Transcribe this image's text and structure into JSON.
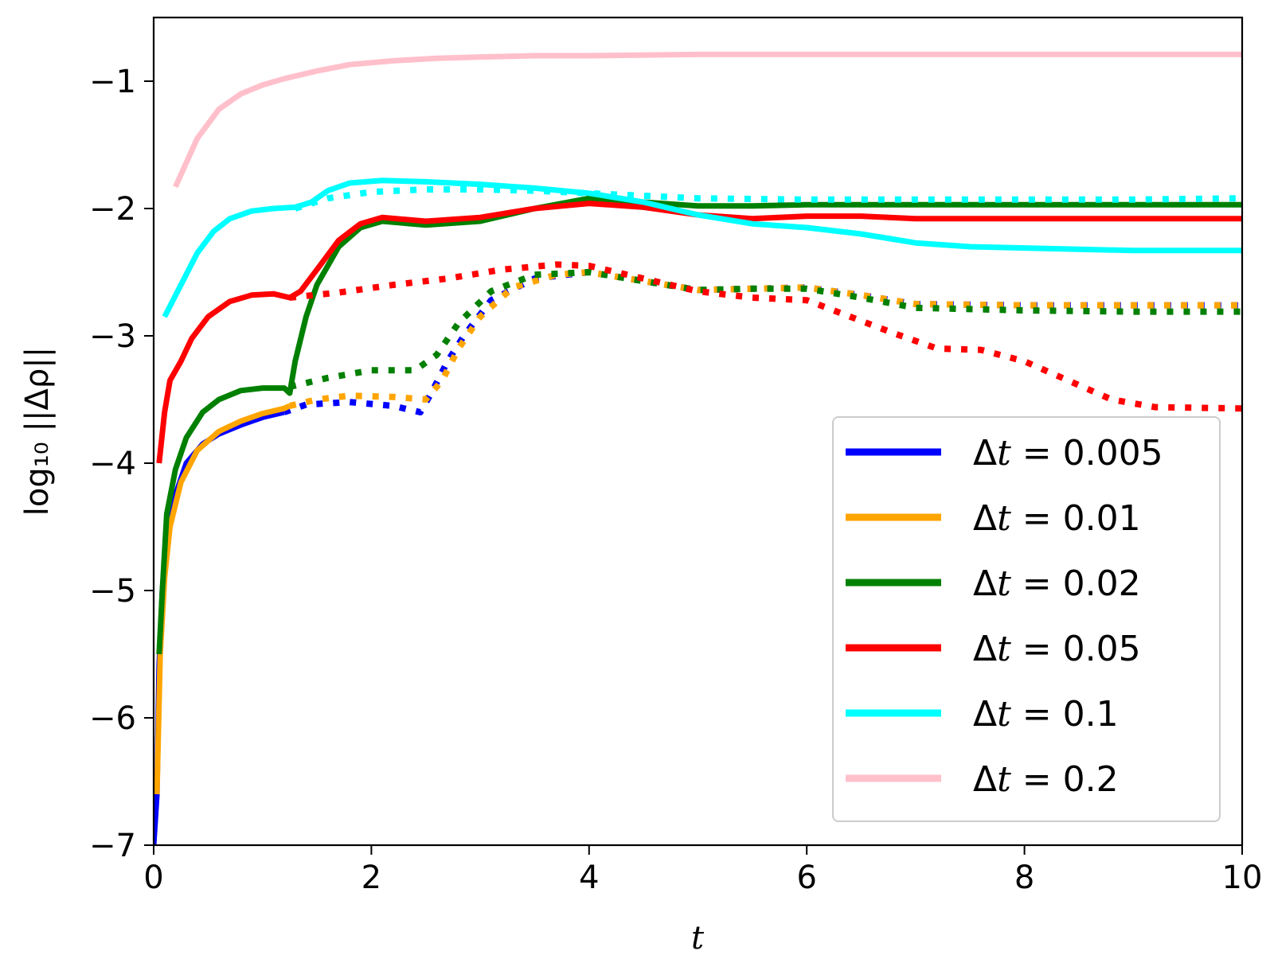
{
  "chart_data": {
    "type": "line",
    "xlabel": "t",
    "ylabel": "log₁₀ ||Δρ||",
    "xlim": [
      0,
      10
    ],
    "ylim": [
      -7,
      -0.5
    ],
    "xticks": [
      0,
      2,
      4,
      6,
      8,
      10
    ],
    "xtick_labels": [
      "0",
      "2",
      "4",
      "6",
      "8",
      "10"
    ],
    "yticks": [
      -7,
      -6,
      -5,
      -4,
      -3,
      -2,
      -1
    ],
    "ytick_labels": [
      "−7",
      "−6",
      "−5",
      "−4",
      "−3",
      "−2",
      "−1"
    ],
    "grid": false,
    "legend_position": "bottom-right",
    "series": [
      {
        "name": "Δt = 0.005",
        "legend_prefix": "Δt = ",
        "legend_value": "0.005",
        "color": "#0000ff",
        "solid": [
          [
            0.0,
            -7.0
          ],
          [
            0.03,
            -6.6
          ],
          [
            0.05,
            -5.6
          ],
          [
            0.08,
            -5.0
          ],
          [
            0.12,
            -4.6
          ],
          [
            0.2,
            -4.25
          ],
          [
            0.3,
            -4.0
          ],
          [
            0.45,
            -3.85
          ],
          [
            0.6,
            -3.77
          ],
          [
            0.8,
            -3.7
          ],
          [
            1.0,
            -3.64
          ],
          [
            1.2,
            -3.6
          ]
        ],
        "dotted": [
          [
            1.2,
            -3.6
          ],
          [
            1.4,
            -3.54
          ],
          [
            1.8,
            -3.52
          ],
          [
            2.2,
            -3.55
          ],
          [
            2.45,
            -3.6
          ],
          [
            2.55,
            -3.45
          ],
          [
            2.7,
            -3.2
          ],
          [
            2.85,
            -3.0
          ],
          [
            3.1,
            -2.72
          ],
          [
            3.5,
            -2.55
          ],
          [
            4.0,
            -2.5
          ],
          [
            4.5,
            -2.57
          ],
          [
            5.0,
            -2.64
          ],
          [
            5.5,
            -2.63
          ],
          [
            6.0,
            -2.62
          ],
          [
            6.5,
            -2.68
          ],
          [
            7.0,
            -2.75
          ],
          [
            8.0,
            -2.76
          ],
          [
            9.0,
            -2.76
          ],
          [
            10.0,
            -2.76
          ]
        ]
      },
      {
        "name": "Δt = 0.01",
        "legend_prefix": "Δt = ",
        "legend_value": "0.01",
        "color": "#ffa500",
        "solid": [
          [
            0.03,
            -6.6
          ],
          [
            0.06,
            -5.5
          ],
          [
            0.1,
            -4.9
          ],
          [
            0.15,
            -4.5
          ],
          [
            0.25,
            -4.15
          ],
          [
            0.4,
            -3.9
          ],
          [
            0.6,
            -3.75
          ],
          [
            0.8,
            -3.67
          ],
          [
            1.0,
            -3.61
          ],
          [
            1.2,
            -3.57
          ],
          [
            1.25,
            -3.55
          ]
        ],
        "dotted": [
          [
            1.25,
            -3.55
          ],
          [
            1.5,
            -3.5
          ],
          [
            1.8,
            -3.47
          ],
          [
            2.2,
            -3.48
          ],
          [
            2.5,
            -3.5
          ],
          [
            2.65,
            -3.35
          ],
          [
            2.8,
            -3.1
          ],
          [
            3.0,
            -2.85
          ],
          [
            3.3,
            -2.62
          ],
          [
            3.7,
            -2.52
          ],
          [
            4.0,
            -2.5
          ],
          [
            4.5,
            -2.57
          ],
          [
            5.0,
            -2.64
          ],
          [
            5.5,
            -2.63
          ],
          [
            6.0,
            -2.62
          ],
          [
            6.5,
            -2.68
          ],
          [
            7.0,
            -2.75
          ],
          [
            8.0,
            -2.76
          ],
          [
            9.0,
            -2.76
          ],
          [
            10.0,
            -2.76
          ]
        ]
      },
      {
        "name": "Δt = 0.02",
        "legend_prefix": "Δt = ",
        "legend_value": "0.02",
        "color": "#008000",
        "solid": [
          [
            0.05,
            -5.5
          ],
          [
            0.08,
            -5.0
          ],
          [
            0.12,
            -4.4
          ],
          [
            0.2,
            -4.05
          ],
          [
            0.3,
            -3.8
          ],
          [
            0.45,
            -3.6
          ],
          [
            0.6,
            -3.5
          ],
          [
            0.8,
            -3.43
          ],
          [
            1.0,
            -3.41
          ],
          [
            1.2,
            -3.41
          ],
          [
            1.25,
            -3.45
          ],
          [
            1.3,
            -3.2
          ],
          [
            1.4,
            -2.85
          ],
          [
            1.5,
            -2.6
          ],
          [
            1.7,
            -2.3
          ],
          [
            1.9,
            -2.15
          ],
          [
            2.1,
            -2.1
          ],
          [
            2.5,
            -2.13
          ],
          [
            3.0,
            -2.1
          ],
          [
            3.5,
            -2.0
          ],
          [
            4.0,
            -1.92
          ],
          [
            4.5,
            -1.95
          ],
          [
            5.0,
            -1.98
          ],
          [
            5.5,
            -1.98
          ],
          [
            6.0,
            -1.97
          ],
          [
            7.0,
            -1.97
          ],
          [
            8.0,
            -1.97
          ],
          [
            9.0,
            -1.97
          ],
          [
            10.0,
            -1.97
          ]
        ],
        "dotted": [
          [
            1.25,
            -3.4
          ],
          [
            1.6,
            -3.33
          ],
          [
            2.0,
            -3.27
          ],
          [
            2.4,
            -3.27
          ],
          [
            2.6,
            -3.15
          ],
          [
            2.8,
            -2.9
          ],
          [
            3.1,
            -2.65
          ],
          [
            3.5,
            -2.52
          ],
          [
            4.0,
            -2.5
          ],
          [
            4.5,
            -2.57
          ],
          [
            5.0,
            -2.64
          ],
          [
            5.5,
            -2.63
          ],
          [
            6.0,
            -2.63
          ],
          [
            6.5,
            -2.7
          ],
          [
            7.0,
            -2.78
          ],
          [
            8.0,
            -2.8
          ],
          [
            9.0,
            -2.81
          ],
          [
            10.0,
            -2.81
          ]
        ]
      },
      {
        "name": "Δt = 0.05",
        "legend_prefix": "Δt = ",
        "legend_value": "0.05",
        "color": "#ff0000",
        "solid": [
          [
            0.05,
            -4.0
          ],
          [
            0.1,
            -3.6
          ],
          [
            0.15,
            -3.35
          ],
          [
            0.25,
            -3.2
          ],
          [
            0.35,
            -3.02
          ],
          [
            0.5,
            -2.85
          ],
          [
            0.7,
            -2.73
          ],
          [
            0.9,
            -2.68
          ],
          [
            1.1,
            -2.67
          ],
          [
            1.25,
            -2.7
          ],
          [
            1.35,
            -2.65
          ],
          [
            1.5,
            -2.48
          ],
          [
            1.7,
            -2.25
          ],
          [
            1.9,
            -2.12
          ],
          [
            2.1,
            -2.07
          ],
          [
            2.5,
            -2.1
          ],
          [
            3.0,
            -2.07
          ],
          [
            3.5,
            -2.0
          ],
          [
            4.0,
            -1.96
          ],
          [
            4.5,
            -1.99
          ],
          [
            5.0,
            -2.05
          ],
          [
            5.5,
            -2.08
          ],
          [
            6.0,
            -2.06
          ],
          [
            6.5,
            -2.06
          ],
          [
            7.0,
            -2.08
          ],
          [
            8.0,
            -2.08
          ],
          [
            9.0,
            -2.08
          ],
          [
            10.0,
            -2.08
          ]
        ],
        "dotted": [
          [
            1.25,
            -2.7
          ],
          [
            1.7,
            -2.66
          ],
          [
            2.2,
            -2.6
          ],
          [
            2.7,
            -2.55
          ],
          [
            3.2,
            -2.48
          ],
          [
            3.7,
            -2.44
          ],
          [
            4.0,
            -2.45
          ],
          [
            4.5,
            -2.55
          ],
          [
            5.0,
            -2.65
          ],
          [
            5.5,
            -2.7
          ],
          [
            6.0,
            -2.72
          ],
          [
            6.4,
            -2.85
          ],
          [
            6.8,
            -2.98
          ],
          [
            7.2,
            -3.1
          ],
          [
            7.6,
            -3.11
          ],
          [
            8.0,
            -3.2
          ],
          [
            8.4,
            -3.35
          ],
          [
            8.8,
            -3.5
          ],
          [
            9.2,
            -3.56
          ],
          [
            10.0,
            -3.57
          ]
        ]
      },
      {
        "name": "Δt = 0.1",
        "legend_prefix": "Δt = ",
        "legend_value": "0.1",
        "color": "#00ffff",
        "solid": [
          [
            0.1,
            -2.85
          ],
          [
            0.25,
            -2.6
          ],
          [
            0.4,
            -2.35
          ],
          [
            0.55,
            -2.18
          ],
          [
            0.7,
            -2.08
          ],
          [
            0.9,
            -2.02
          ],
          [
            1.1,
            -2.0
          ],
          [
            1.3,
            -1.99
          ],
          [
            1.45,
            -1.95
          ],
          [
            1.6,
            -1.86
          ],
          [
            1.8,
            -1.8
          ],
          [
            2.1,
            -1.78
          ],
          [
            2.5,
            -1.79
          ],
          [
            3.0,
            -1.81
          ],
          [
            3.5,
            -1.84
          ],
          [
            4.0,
            -1.88
          ],
          [
            4.5,
            -1.95
          ],
          [
            5.0,
            -2.05
          ],
          [
            5.5,
            -2.12
          ],
          [
            6.0,
            -2.15
          ],
          [
            6.5,
            -2.2
          ],
          [
            7.0,
            -2.27
          ],
          [
            7.5,
            -2.3
          ],
          [
            8.0,
            -2.31
          ],
          [
            9.0,
            -2.33
          ],
          [
            10.0,
            -2.33
          ]
        ],
        "dotted": [
          [
            1.3,
            -2.0
          ],
          [
            1.6,
            -1.92
          ],
          [
            2.0,
            -1.87
          ],
          [
            2.5,
            -1.85
          ],
          [
            3.0,
            -1.85
          ],
          [
            3.5,
            -1.86
          ],
          [
            4.0,
            -1.88
          ],
          [
            5.0,
            -1.92
          ],
          [
            6.0,
            -1.93
          ],
          [
            7.0,
            -1.93
          ],
          [
            8.0,
            -1.93
          ],
          [
            9.0,
            -1.93
          ],
          [
            10.0,
            -1.92
          ]
        ]
      },
      {
        "name": "Δt = 0.2",
        "legend_prefix": "Δt = ",
        "legend_value": "0.2",
        "color": "#ffc0cb",
        "solid": [
          [
            0.2,
            -1.83
          ],
          [
            0.4,
            -1.45
          ],
          [
            0.6,
            -1.22
          ],
          [
            0.8,
            -1.1
          ],
          [
            1.0,
            -1.03
          ],
          [
            1.2,
            -0.98
          ],
          [
            1.5,
            -0.92
          ],
          [
            1.8,
            -0.87
          ],
          [
            2.2,
            -0.84
          ],
          [
            2.6,
            -0.82
          ],
          [
            3.0,
            -0.81
          ],
          [
            3.5,
            -0.8
          ],
          [
            4.0,
            -0.8
          ],
          [
            5.0,
            -0.79
          ],
          [
            6.0,
            -0.79
          ],
          [
            7.0,
            -0.79
          ],
          [
            8.0,
            -0.79
          ],
          [
            9.0,
            -0.79
          ],
          [
            10.0,
            -0.79
          ]
        ],
        "dotted": []
      }
    ]
  }
}
